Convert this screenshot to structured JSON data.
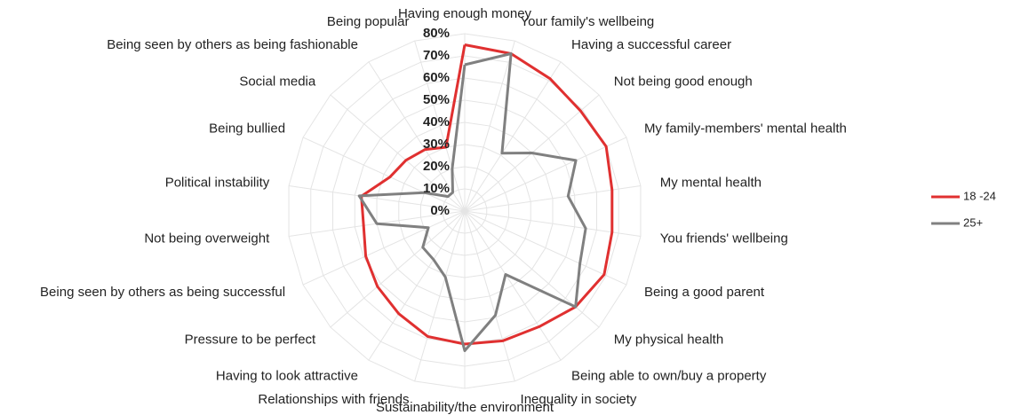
{
  "chart_data": {
    "type": "radar",
    "categories": [
      "Having enough money",
      "Your family's wellbeing",
      "Having a successful career",
      "Not being good enough",
      "My family-members' mental health",
      "My mental health",
      "You friends' wellbeing",
      "Being a good parent",
      "My physical health",
      "Being able to own/buy a property",
      "Inequality in society",
      "Sustainability/the environment",
      "Relationships with friends",
      "Having to look attractive",
      "Pressure to be perfect",
      "Being seen by others as being successful",
      "Not being overweight",
      "Political instability",
      "Being bullied",
      "Social media",
      "Being seen by others as being fashionable",
      "Being popular"
    ],
    "series": [
      {
        "name": "18 -24",
        "color": "#e03030",
        "values": [
          75,
          74,
          71,
          69,
          70,
          67,
          67,
          69,
          66,
          62,
          61,
          60,
          59,
          55,
          52,
          49,
          46,
          47,
          37,
          35,
          33,
          30
        ]
      },
      {
        "name": "25+",
        "color": "#808080",
        "values": [
          66,
          74,
          31,
          40,
          55,
          47,
          55,
          57,
          66,
          34,
          49,
          63,
          31,
          26,
          25,
          18,
          40,
          48,
          20,
          10,
          10,
          20
        ]
      }
    ],
    "ylim": [
      0,
      80
    ],
    "yticks": [
      {
        "value": 0,
        "label": "0%"
      },
      {
        "value": 10,
        "label": "10%"
      },
      {
        "value": 20,
        "label": "20%"
      },
      {
        "value": 30,
        "label": "30%"
      },
      {
        "value": 40,
        "label": "40%"
      },
      {
        "value": 50,
        "label": "50%"
      },
      {
        "value": 60,
        "label": "60%"
      },
      {
        "value": 70,
        "label": "70%"
      },
      {
        "value": 80,
        "label": "80%"
      }
    ],
    "grid": true,
    "legend": "right"
  }
}
